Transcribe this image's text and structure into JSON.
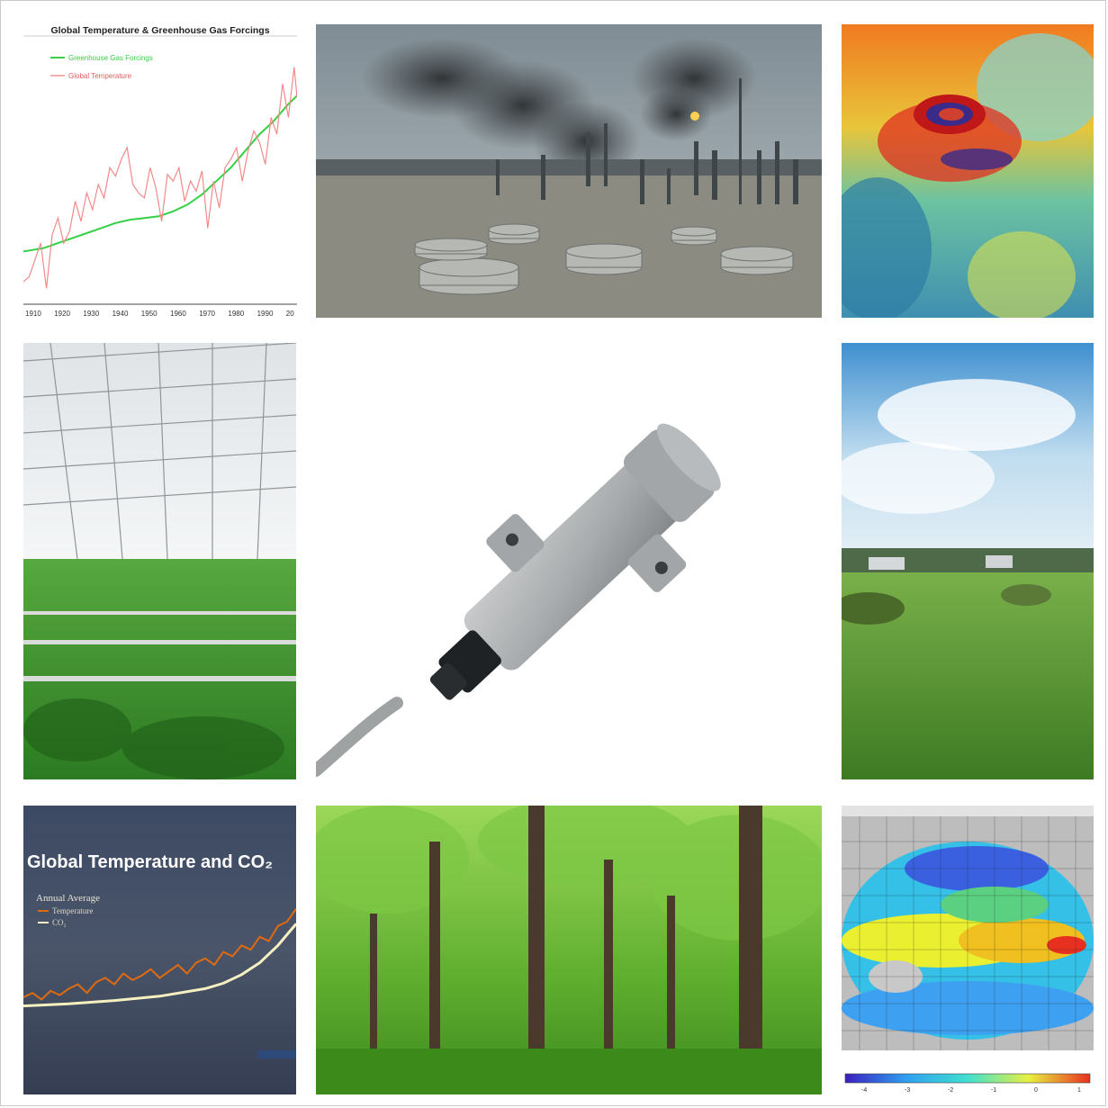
{
  "tiles": {
    "temp_ghg_chart": {
      "caption": "Global Temperature & Greenhouse Gas Forcings"
    },
    "temp_co2_chart": {
      "caption": "Global Temperature and CO₂"
    }
  },
  "chart_data": [
    {
      "type": "line",
      "title": "Global Temperature & Greenhouse Gas Forcings",
      "xlabel": "",
      "ylabel": "",
      "xlim": [
        1908,
        2003
      ],
      "x_ticks": [
        "1910",
        "1920",
        "1930",
        "1940",
        "1950",
        "1960",
        "1970",
        "1980",
        "1990",
        "20"
      ],
      "legend_position": "top-left",
      "series": [
        {
          "name": "Greenhouse Gas Forcings",
          "color": "#35d045",
          "x": [
            1908,
            1915,
            1920,
            1925,
            1930,
            1935,
            1940,
            1945,
            1950,
            1955,
            1960,
            1965,
            1970,
            1975,
            1980,
            1985,
            1990,
            1995,
            2000,
            2003
          ],
          "y": [
            0.0,
            0.02,
            0.05,
            0.08,
            0.11,
            0.14,
            0.17,
            0.19,
            0.2,
            0.21,
            0.24,
            0.28,
            0.34,
            0.42,
            0.5,
            0.6,
            0.7,
            0.78,
            0.88,
            0.93
          ]
        },
        {
          "name": "Global Temperature",
          "color": "#f28a8a",
          "x": [
            1908,
            1910,
            1912,
            1914,
            1916,
            1918,
            1920,
            1922,
            1924,
            1926,
            1928,
            1930,
            1932,
            1934,
            1936,
            1938,
            1940,
            1942,
            1944,
            1946,
            1948,
            1950,
            1952,
            1954,
            1956,
            1958,
            1960,
            1962,
            1964,
            1966,
            1968,
            1970,
            1972,
            1974,
            1976,
            1978,
            1980,
            1982,
            1984,
            1986,
            1988,
            1990,
            1992,
            1994,
            1996,
            1998,
            2000,
            2002,
            2003
          ],
          "y": [
            -0.18,
            -0.15,
            -0.05,
            0.05,
            -0.22,
            0.1,
            0.2,
            0.05,
            0.12,
            0.3,
            0.18,
            0.35,
            0.25,
            0.4,
            0.32,
            0.5,
            0.45,
            0.55,
            0.62,
            0.4,
            0.35,
            0.32,
            0.5,
            0.38,
            0.18,
            0.46,
            0.42,
            0.5,
            0.3,
            0.42,
            0.36,
            0.48,
            0.14,
            0.42,
            0.26,
            0.5,
            0.55,
            0.62,
            0.42,
            0.6,
            0.72,
            0.65,
            0.52,
            0.8,
            0.7,
            1.0,
            0.8,
            1.1,
            0.92
          ]
        }
      ]
    },
    {
      "type": "line",
      "title": "Global Temperature and CO₂",
      "subtitle": "Annual Average",
      "legend_position": "top-left",
      "series": [
        {
          "name": "Temperature",
          "color": "#e06a10",
          "x": [
            0,
            1,
            2,
            3,
            4,
            5,
            6,
            7,
            8,
            9,
            10,
            11,
            12,
            13,
            14,
            15,
            16,
            17,
            18,
            19,
            20,
            21,
            22,
            23,
            24,
            25,
            26,
            27,
            28,
            29,
            30
          ],
          "y": [
            0.1,
            0.14,
            0.08,
            0.16,
            0.12,
            0.18,
            0.22,
            0.14,
            0.24,
            0.28,
            0.22,
            0.32,
            0.26,
            0.3,
            0.36,
            0.28,
            0.34,
            0.4,
            0.32,
            0.42,
            0.46,
            0.4,
            0.52,
            0.48,
            0.58,
            0.54,
            0.66,
            0.62,
            0.76,
            0.8,
            0.92
          ]
        },
        {
          "name": "CO₂",
          "color": "#f6f0c0",
          "x": [
            0,
            5,
            10,
            15,
            20,
            22,
            24,
            26,
            28,
            30
          ],
          "y": [
            0.02,
            0.04,
            0.07,
            0.11,
            0.18,
            0.23,
            0.31,
            0.42,
            0.58,
            0.78
          ]
        }
      ]
    }
  ],
  "legend_labels": {
    "ghg": "Greenhouse Gas Forcings",
    "temp": "Global Temperature",
    "subtitle": "Annual Average",
    "temperature": "Temperature",
    "co2": "CO₂"
  },
  "ocean_colorbar": {
    "ticks": [
      "-4",
      "-3",
      "-2",
      "-1",
      "0",
      "1"
    ]
  }
}
